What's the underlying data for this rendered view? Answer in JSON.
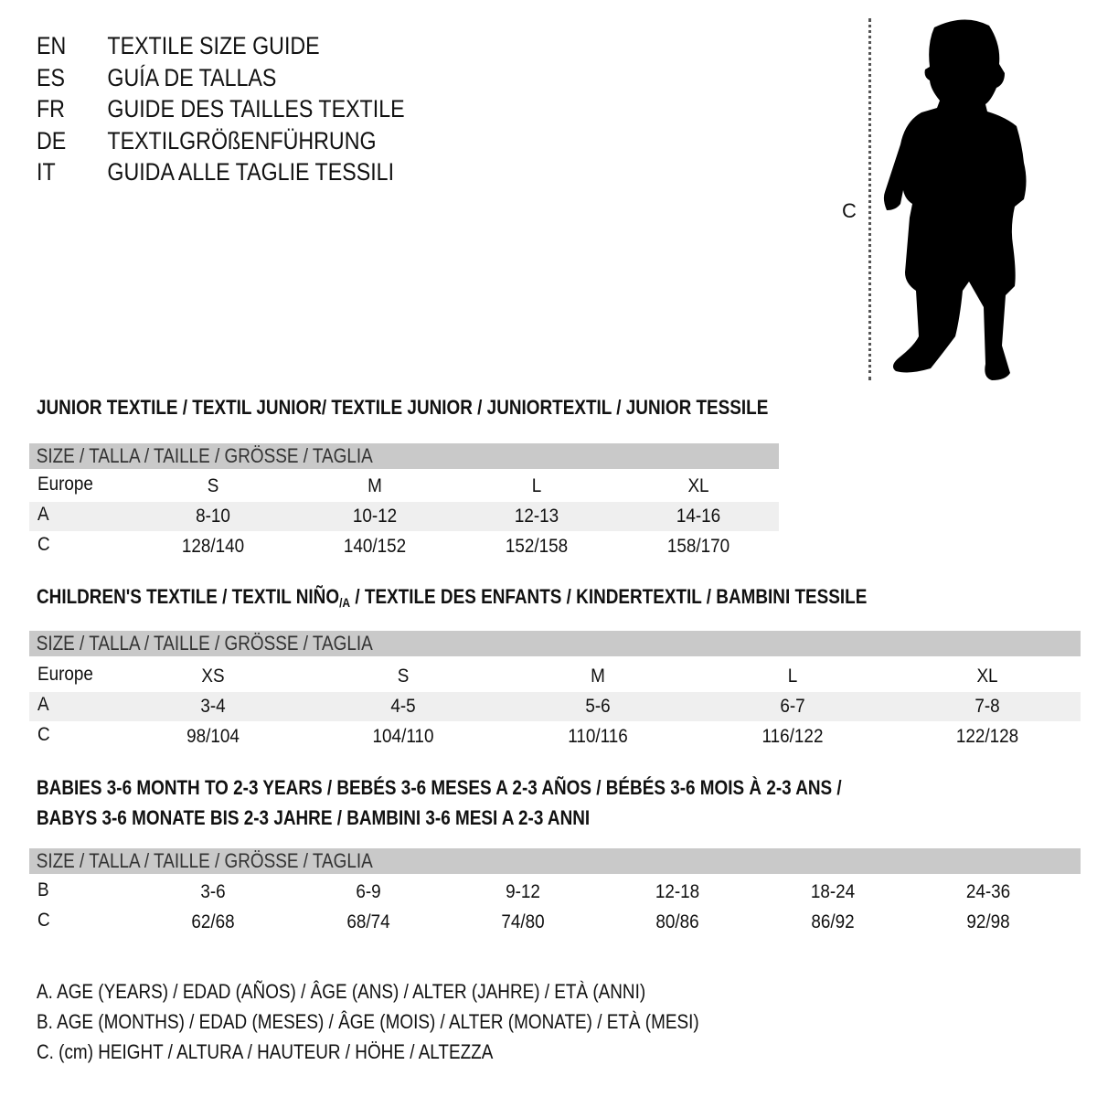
{
  "languages": [
    {
      "code": "EN",
      "title": "TEXTILE SIZE GUIDE"
    },
    {
      "code": "ES",
      "title": "GUÍA DE TALLAS"
    },
    {
      "code": "FR",
      "title": "GUIDE DES TAILLES TEXTILE"
    },
    {
      "code": "DE",
      "title": "TEXTILGRÖßENFÜHRUNG"
    },
    {
      "code": "IT",
      "title": "GUIDA ALLE TAGLIE TESSILI"
    }
  ],
  "figure": {
    "measure_label": "C",
    "icon": "child-silhouette-icon"
  },
  "size_header": "SIZE / TALLA / TAILLE / GRÖSSE / TAGLIA",
  "colors": {
    "header_bar": "#c9c9c9",
    "stripe": "#efefef",
    "text": "#111111"
  },
  "junior": {
    "title": "JUNIOR TEXTILE / TEXTIL JUNIOR/ TEXTILE JUNIOR / JUNIORTEXTIL / JUNIOR TESSILE",
    "rows": [
      {
        "label": "Europe",
        "values": [
          "S",
          "M",
          "L",
          "XL"
        ]
      },
      {
        "label": "A",
        "values": [
          "8-10",
          "10-12",
          "12-13",
          "14-16"
        ]
      },
      {
        "label": "C",
        "values": [
          "128/140",
          "140/152",
          "152/158",
          "158/170"
        ]
      }
    ]
  },
  "children": {
    "title_pre": "CHILDREN'S TEXTILE / TEXTIL NIÑO",
    "title_sub": "/A",
    "title_post": " / TEXTILE DES ENFANTS / KINDERTEXTIL / BAMBINI TESSILE",
    "rows": [
      {
        "label": "Europe",
        "values": [
          "XS",
          "S",
          "M",
          "L",
          "XL"
        ]
      },
      {
        "label": "A",
        "values": [
          "3-4",
          "4-5",
          "5-6",
          "6-7",
          "7-8"
        ]
      },
      {
        "label": "C",
        "values": [
          "98/104",
          "104/110",
          "110/116",
          "116/122",
          "122/128"
        ]
      }
    ]
  },
  "babies": {
    "title_line1": "BABIES 3-6 MONTH TO 2-3 YEARS / BEBÉS 3-6 MESES A 2-3 AÑOS / BÉBÉS 3-6 MOIS À 2-3 ANS /",
    "title_line2": "BABYS 3-6 MONATE BIS 2-3 JAHRE / BAMBINI 3-6 MESI A 2-3 ANNI",
    "rows": [
      {
        "label": "B",
        "values": [
          "3-6",
          "6-9",
          "9-12",
          "12-18",
          "18-24",
          "24-36"
        ]
      },
      {
        "label": "C",
        "values": [
          "62/68",
          "68/74",
          "74/80",
          "80/86",
          "86/92",
          "92/98"
        ]
      }
    ]
  },
  "legend": [
    "A. AGE (YEARS) / EDAD (AÑOS) / ÂGE (ANS) / ALTER (JAHRE) / ETÀ (ANNI)",
    "B. AGE (MONTHS) / EDAD (MESES) / ÂGE (MOIS) / ALTER (MONATE) / ETÀ (MESI)",
    "C. (cm) HEIGHT / ALTURA / HAUTEUR / HÖHE / ALTEZZA"
  ]
}
